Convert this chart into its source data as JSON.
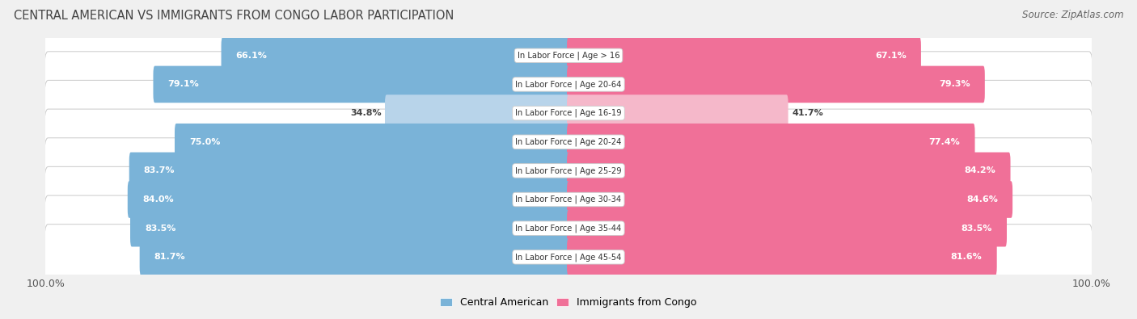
{
  "title": "CENTRAL AMERICAN VS IMMIGRANTS FROM CONGO LABOR PARTICIPATION",
  "source": "Source: ZipAtlas.com",
  "categories": [
    "In Labor Force | Age > 16",
    "In Labor Force | Age 20-64",
    "In Labor Force | Age 16-19",
    "In Labor Force | Age 20-24",
    "In Labor Force | Age 25-29",
    "In Labor Force | Age 30-34",
    "In Labor Force | Age 35-44",
    "In Labor Force | Age 45-54"
  ],
  "central_american": [
    66.1,
    79.1,
    34.8,
    75.0,
    83.7,
    84.0,
    83.5,
    81.7
  ],
  "immigrants_congo": [
    67.1,
    79.3,
    41.7,
    77.4,
    84.2,
    84.6,
    83.5,
    81.6
  ],
  "blue_color": "#7ab3d8",
  "pink_color": "#f07098",
  "blue_light": "#b8d4ea",
  "pink_light": "#f5b8ca",
  "bg_color": "#f0f0f0",
  "max_val": 100.0,
  "legend_blue": "Central American",
  "legend_pink": "Immigrants from Congo"
}
